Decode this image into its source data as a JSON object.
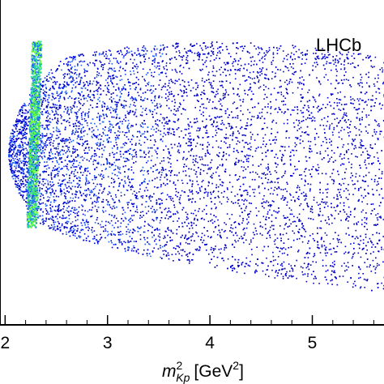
{
  "chart_data": {
    "type": "scatter",
    "title": "",
    "watermark": "LHCb",
    "xlabel": {
      "symbol": "m",
      "superscript": "2",
      "subscript": "Kp",
      "unit_prefix": "[GeV",
      "unit_superscript": "2",
      "unit_suffix": "]"
    },
    "ylabel": "",
    "xlim": [
      1.95,
      5.7
    ],
    "ylim": [
      0,
      1
    ],
    "x_ticks": [
      "2",
      "3",
      "4",
      "5"
    ],
    "x_tick_values": [
      2,
      3,
      4,
      5
    ],
    "grid": false,
    "description_region": {
      "x_min": 1.98,
      "x_max": 5.7,
      "x_peak": 2.3,
      "dense_band_x": 2.28
    },
    "colors": {
      "low": "#0000cc",
      "mid": "#1f5fff",
      "high": "#22ccaa",
      "peak": "#66ff33"
    }
  }
}
